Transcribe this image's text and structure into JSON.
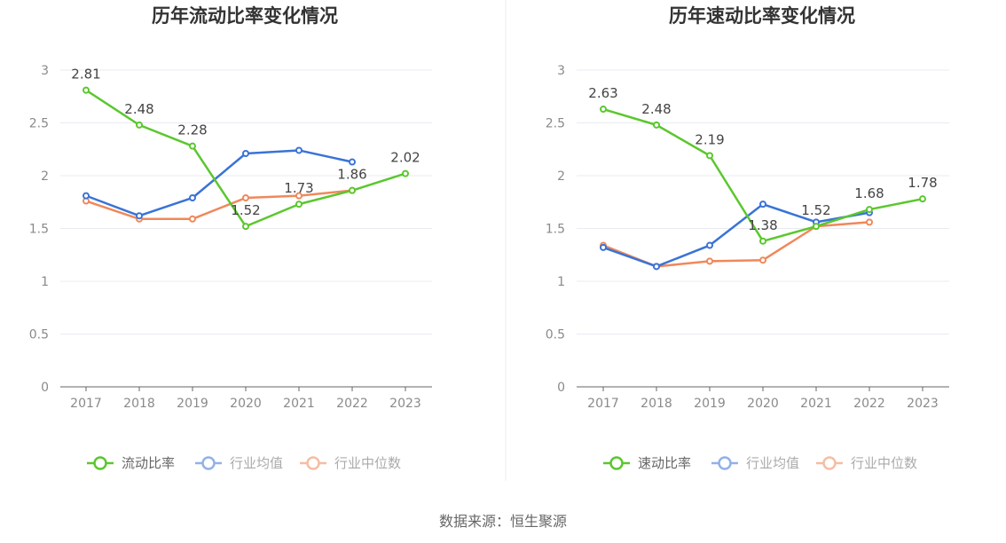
{
  "chart_data": [
    {
      "type": "line",
      "title": "历年流动比率变化情况",
      "categories": [
        "2017",
        "2018",
        "2019",
        "2020",
        "2021",
        "2022",
        "2023"
      ],
      "ylim": [
        0,
        3
      ],
      "yticks": [
        "0",
        "0.5",
        "1",
        "1.5",
        "2",
        "2.5",
        "3"
      ],
      "grid": true,
      "legend_position": "bottom",
      "series": [
        {
          "name": "流动比率",
          "color": "#5bc72e",
          "legend_marker": "hollow",
          "values": [
            2.81,
            2.48,
            2.28,
            1.52,
            1.73,
            1.86,
            2.02
          ],
          "labels": [
            "2.81",
            "2.48",
            "2.28",
            "1.52",
            "1.73",
            "1.86",
            "2.02"
          ]
        },
        {
          "name": "行业均值",
          "color": "#3a73d6",
          "legend_marker": "faded",
          "values": [
            1.81,
            1.62,
            1.79,
            2.21,
            2.24,
            2.13,
            null
          ]
        },
        {
          "name": "行业中位数",
          "color": "#f0885a",
          "legend_marker": "faded",
          "values": [
            1.76,
            1.59,
            1.59,
            1.79,
            1.81,
            1.86,
            null
          ]
        }
      ]
    },
    {
      "type": "line",
      "title": "历年速动比率变化情况",
      "categories": [
        "2017",
        "2018",
        "2019",
        "2020",
        "2021",
        "2022",
        "2023"
      ],
      "ylim": [
        0,
        3
      ],
      "yticks": [
        "0",
        "0.5",
        "1",
        "1.5",
        "2",
        "2.5",
        "3"
      ],
      "grid": true,
      "legend_position": "bottom",
      "series": [
        {
          "name": "速动比率",
          "color": "#5bc72e",
          "legend_marker": "hollow",
          "values": [
            2.63,
            2.48,
            2.19,
            1.38,
            1.52,
            1.68,
            1.78
          ],
          "labels": [
            "2.63",
            "2.48",
            "2.19",
            "1.38",
            "1.52",
            "1.68",
            "1.78"
          ]
        },
        {
          "name": "行业均值",
          "color": "#3a73d6",
          "legend_marker": "faded",
          "values": [
            1.32,
            1.14,
            1.34,
            1.73,
            1.56,
            1.65,
            null
          ]
        },
        {
          "name": "行业中位数",
          "color": "#f0885a",
          "legend_marker": "faded",
          "values": [
            1.34,
            1.14,
            1.19,
            1.2,
            1.52,
            1.56,
            null
          ]
        }
      ]
    }
  ],
  "footer": {
    "source": "数据来源：恒生聚源"
  }
}
